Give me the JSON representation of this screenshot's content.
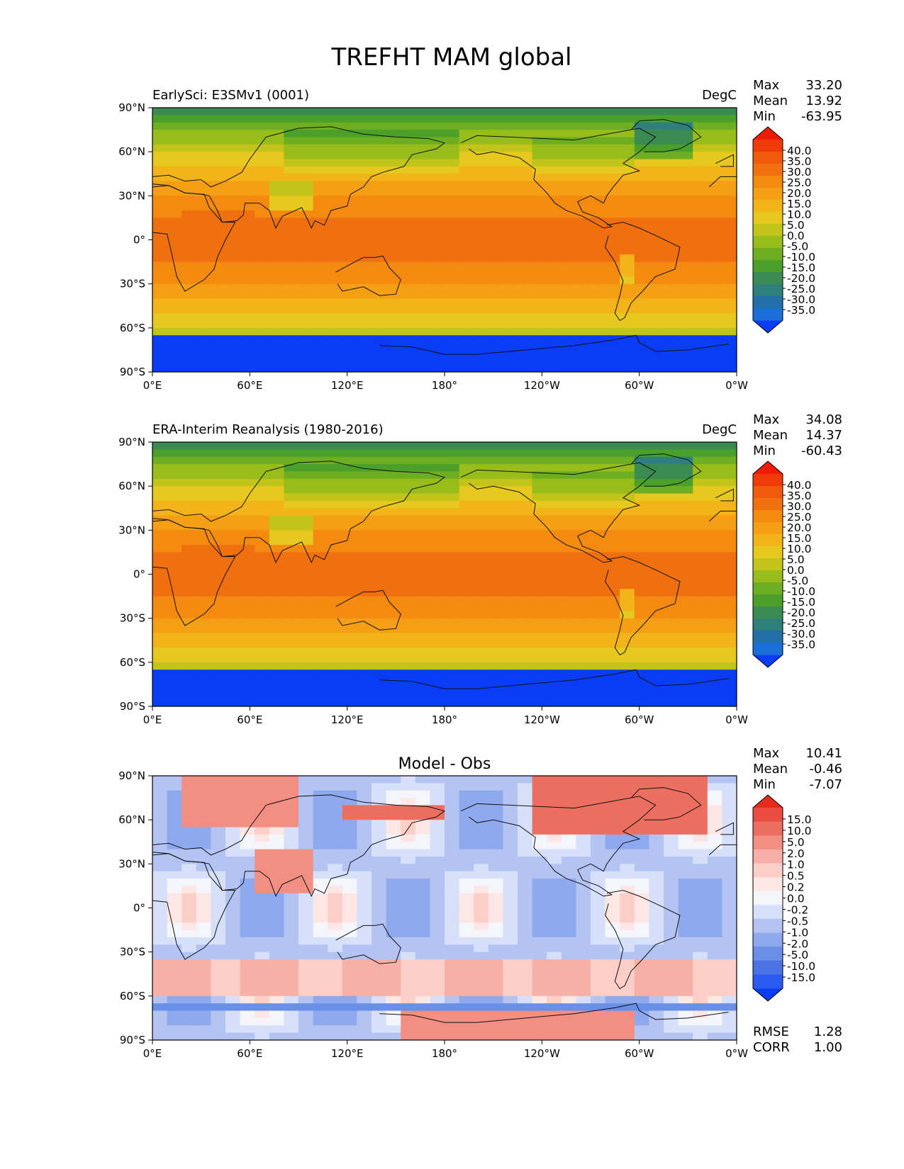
{
  "figure": {
    "title": "TREFHT MAM global"
  },
  "colors": {
    "abs_levels": [
      "#0a3cf5",
      "#1a6fd8",
      "#236fa8",
      "#2f7f7d",
      "#3a8a52",
      "#4aa02a",
      "#6eae23",
      "#98bd1a",
      "#c2c41a",
      "#e6c81e",
      "#f2b418",
      "#f49f14",
      "#f48a10",
      "#f07010",
      "#f05a0a",
      "#f03a08",
      "#ee1c06"
    ],
    "diff_levels": [
      "#0b3cf5",
      "#2a5aef",
      "#4a74e5",
      "#6a8fe6",
      "#8ea9ee",
      "#b3c4f3",
      "#d6e0f8",
      "#f5f6fb",
      "#fde6e3",
      "#fbcfc8",
      "#f7b0a6",
      "#f28e82",
      "#ec6e61",
      "#e84d3f",
      "#e62b1d"
    ]
  },
  "chart_data": [
    {
      "type": "heatmap",
      "subtitle": "EarlySci: E3SMv1 (0001)",
      "units": "DegC",
      "stats": [
        {
          "label": "Max",
          "value": "33.20"
        },
        {
          "label": "Mean",
          "value": "13.92"
        },
        {
          "label": "Min",
          "value": "-63.95"
        }
      ],
      "colorbar_ticks": [
        "40.0",
        "35.0",
        "30.0",
        "25.0",
        "20.0",
        "15.0",
        "10.0",
        "5.0",
        "0.0",
        "-5.0",
        "-10.0",
        "-15.0",
        "-20.0",
        "-25.0",
        "-30.0",
        "-35.0"
      ],
      "xticks": [
        "0°E",
        "60°E",
        "120°E",
        "180°",
        "120°W",
        "60°W",
        "0°W"
      ],
      "yticks": [
        "90°N",
        "60°N",
        "30°N",
        "0°",
        "30°S",
        "60°S",
        "90°S"
      ],
      "x_range": [
        0,
        360
      ],
      "y_range": [
        -90,
        90
      ],
      "colormap": "abs"
    },
    {
      "type": "heatmap",
      "subtitle": "ERA-Interim Reanalysis (1980-2016)",
      "units": "DegC",
      "stats": [
        {
          "label": "Max",
          "value": "34.08"
        },
        {
          "label": "Mean",
          "value": "14.37"
        },
        {
          "label": "Min",
          "value": "-60.43"
        }
      ],
      "colorbar_ticks": [
        "40.0",
        "35.0",
        "30.0",
        "25.0",
        "20.0",
        "15.0",
        "10.0",
        "5.0",
        "0.0",
        "-5.0",
        "-10.0",
        "-15.0",
        "-20.0",
        "-25.0",
        "-30.0",
        "-35.0"
      ],
      "xticks": [
        "0°E",
        "60°E",
        "120°E",
        "180°",
        "120°W",
        "60°W",
        "0°W"
      ],
      "yticks": [
        "90°N",
        "60°N",
        "30°N",
        "0°",
        "30°S",
        "60°S",
        "90°S"
      ],
      "x_range": [
        0,
        360
      ],
      "y_range": [
        -90,
        90
      ],
      "colormap": "abs"
    },
    {
      "type": "heatmap",
      "title": "Model - Obs",
      "stats": [
        {
          "label": "Max",
          "value": "10.41"
        },
        {
          "label": "Mean",
          "value": "-0.46"
        },
        {
          "label": "Min",
          "value": "-7.07"
        }
      ],
      "bottom_stats": [
        {
          "label": "RMSE",
          "value": "1.28"
        },
        {
          "label": "CORR",
          "value": "1.00"
        }
      ],
      "colorbar_ticks": [
        "15.0",
        "10.0",
        "5.0",
        "2.0",
        "1.0",
        "0.5",
        "0.2",
        "0.0",
        "-0.2",
        "-0.5",
        "-1.0",
        "-2.0",
        "-5.0",
        "-10.0",
        "-15.0"
      ],
      "xticks": [
        "0°E",
        "60°E",
        "120°E",
        "180°",
        "120°W",
        "60°W",
        "0°W"
      ],
      "yticks": [
        "90°N",
        "60°N",
        "30°N",
        "0°",
        "30°S",
        "60°S",
        "90°S"
      ],
      "x_range": [
        0,
        360
      ],
      "y_range": [
        -90,
        90
      ],
      "colormap": "diff"
    }
  ]
}
